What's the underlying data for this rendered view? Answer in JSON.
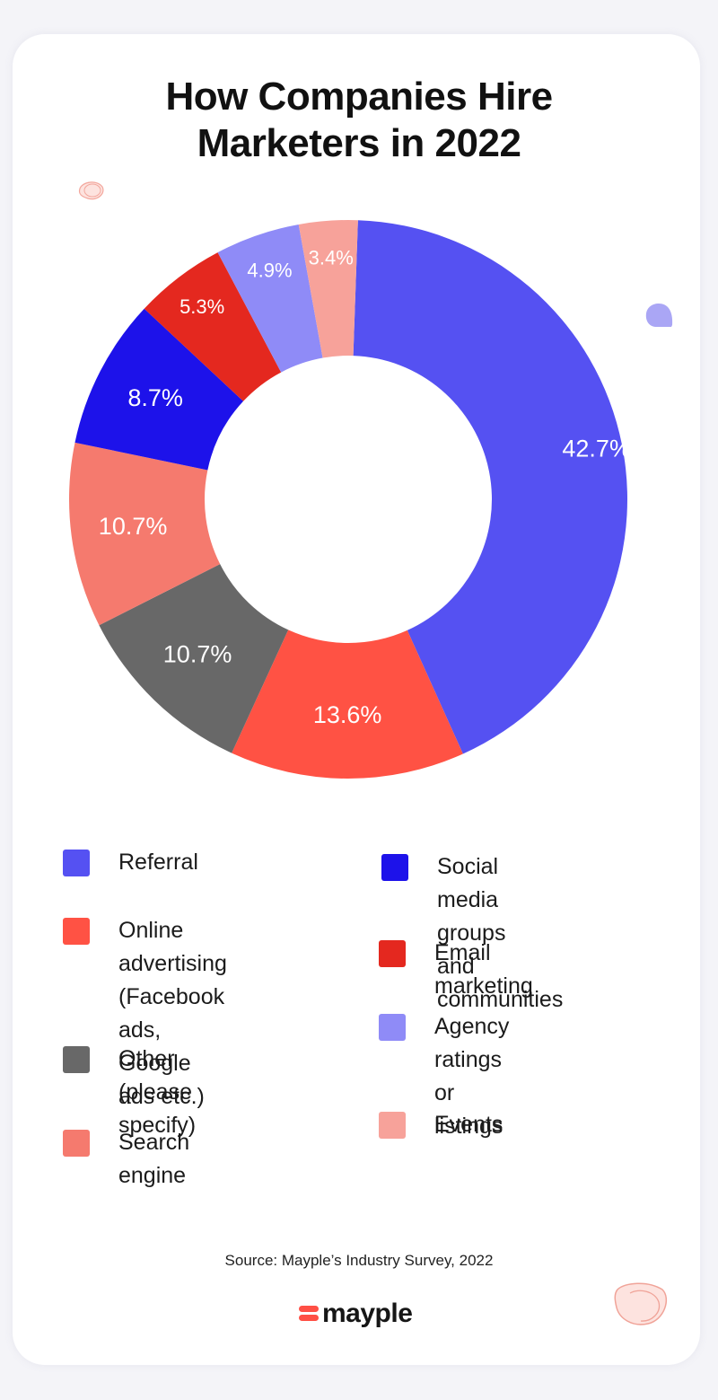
{
  "title_lines": [
    "How Companies Hire",
    "Marketers in 2022"
  ],
  "chart_data": {
    "type": "pie",
    "title": "How Companies Hire Marketers in 2022",
    "donut": true,
    "slices": [
      {
        "name": "Referral",
        "value": 42.7,
        "label": "42.7%",
        "color": "#5551f2"
      },
      {
        "name": "Online advertising (Facebook ads, Google ads etc.)",
        "value": 13.6,
        "label": "13.6%",
        "color": "#ff5244"
      },
      {
        "name": "Other (please specify)",
        "value": 10.7,
        "label": "10.7%",
        "color": "#686868"
      },
      {
        "name": "Search engine",
        "value": 10.7,
        "label": "10.7%",
        "color": "#f57a6e"
      },
      {
        "name": "Social media groups and communities",
        "value": 8.7,
        "label": "8.7%",
        "color": "#1d12ea"
      },
      {
        "name": "Email marketing",
        "value": 5.3,
        "label": "5.3%",
        "color": "#e4281f"
      },
      {
        "name": "Agency ratings or listings",
        "value": 4.9,
        "label": "4.9%",
        "color": "#8f8bf7"
      },
      {
        "name": "Events",
        "value": 3.4,
        "label": "3.4%",
        "color": "#f7a29a"
      }
    ],
    "legend_position": "bottom"
  },
  "legend": {
    "left": [
      {
        "label": "Referral",
        "color": "#5551f2"
      },
      {
        "label": "Online advertising\n(Facebook ads,\nGoogle ads etc.)",
        "color": "#ff5244"
      },
      {
        "label": "Other (please\nspecify)",
        "color": "#686868"
      },
      {
        "label": "Search engine",
        "color": "#f57a6e"
      }
    ],
    "right": [
      {
        "label": "Social media groups\nand communities",
        "color": "#1d12ea"
      },
      {
        "label": "Email marketing",
        "color": "#e4281f"
      },
      {
        "label": "Agency ratings or\nlistings",
        "color": "#8f8bf7"
      },
      {
        "label": "Events",
        "color": "#f7a29a"
      }
    ]
  },
  "source": "Source: Mayple’s Industry Survey, 2022",
  "logo": {
    "text": "mayple",
    "mark_color": "#ff4f45"
  }
}
